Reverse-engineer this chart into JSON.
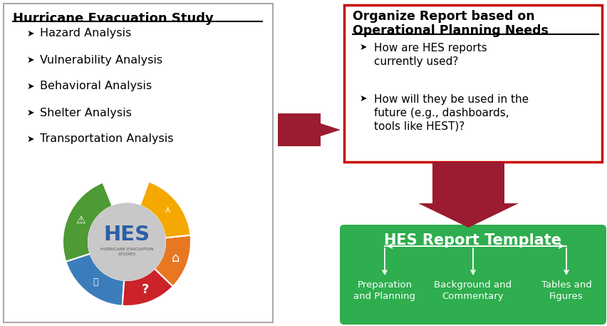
{
  "title_left": "Hurricane Evacuation Study",
  "bullets_left": [
    "Hazard Analysis",
    "Vulnerability Analysis",
    "Behavioral Analysis",
    "Shelter Analysis",
    "Transportation Analysis"
  ],
  "title_right_line1": "Organize Report based on",
  "title_right_line2": "Operational Planning Needs",
  "bullets_right": [
    "How are HES reports\ncurrently used?",
    "How will they be used in the\nfuture (e.g., dashboards,\ntools like HEST)?"
  ],
  "hes_center_text": "HES",
  "hes_sub_text": "HURRICANE EVACUATION\nSTUDIES",
  "green_title": "HES Report Template",
  "green_labels": [
    "Preparation\nand Planning",
    "Background and\nCommentary",
    "Tables and\nFigures"
  ],
  "arrow_color": "#9B1B30",
  "box_border_color": "#CC0000",
  "green_color": "#2EAE4E",
  "seg_colors": [
    "#4E9A34",
    "#3B7DBB",
    "#CC2229",
    "#E87722",
    "#F5A800"
  ],
  "hes_circle_color": "#C8C8C8",
  "hes_text_color": "#2B5EA7",
  "background": "#FFFFFF",
  "left_box_color": "#AAAAAA",
  "bullet_char": "➤"
}
